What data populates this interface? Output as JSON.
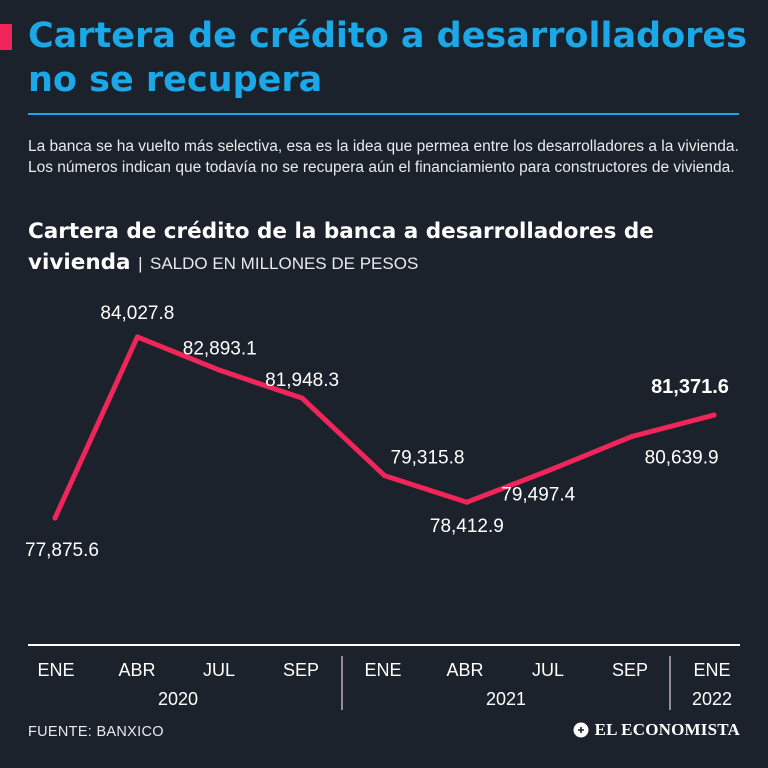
{
  "header": {
    "title": "Cartera de crédito a desarrolladores no se recupera",
    "intro": "La banca se ha vuelto más selectiva, esa es la idea que permea entre los desarrolladores a la vivienda. Los números indican que todavía no se recupera aún el financiamiento para constructores de vivienda."
  },
  "chart_header": {
    "title": "Cartera de crédito de la banca a desarrolladores de vivienda",
    "separator": "|",
    "subtitle": "SALDO EN MILLONES DE PESOS"
  },
  "colors": {
    "background": "#1c222b",
    "accent": "#f0265a",
    "headline": "#1aa8e8",
    "line": "#f0265a",
    "text": "#ffffff",
    "axis": "#ffffff"
  },
  "chart_data": {
    "type": "line",
    "title": "Cartera de crédito de la banca a desarrolladores de vivienda",
    "ylabel": "SALDO EN MILLONES DE PESOS",
    "xlabel": "",
    "ylim": [
      77000,
      85000
    ],
    "grid": false,
    "categories": [
      "ENE",
      "ABR",
      "JUL",
      "SEP",
      "ENE",
      "ABR",
      "JUL",
      "SEP",
      "ENE"
    ],
    "years": [
      {
        "label": "2020",
        "start": 0,
        "end": 3
      },
      {
        "label": "2021",
        "start": 4,
        "end": 7
      },
      {
        "label": "2022",
        "start": 8,
        "end": 8
      }
    ],
    "series": [
      {
        "name": "Cartera de crédito",
        "values": [
          77875.6,
          84027.8,
          82893.1,
          81948.3,
          79315.8,
          78412.9,
          79497.4,
          80639.9,
          81371.6
        ],
        "labels": [
          "77,875.6",
          "84,027.8",
          "82,893.1",
          "81,948.3",
          "79,315.8",
          "78,412.9",
          "79,497.4",
          "80,639.9",
          "81,371.6"
        ]
      }
    ],
    "highlight_index": 8
  },
  "footer": {
    "source": "FUENTE: BANXICO",
    "brand": "EL ECONOMISTA"
  }
}
